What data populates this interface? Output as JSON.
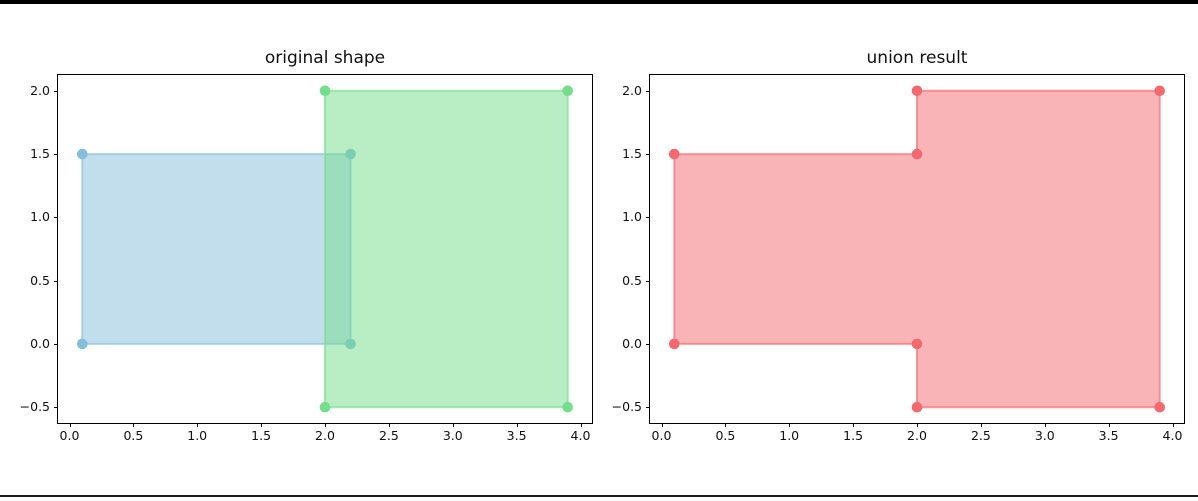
{
  "figure": {
    "background": "#ffffff",
    "top_border_color": "#000000",
    "bottom_border_color": "#1c1c1c"
  },
  "chart_data": [
    {
      "type": "area",
      "title": "original shape",
      "xlabel": "",
      "ylabel": "",
      "xlim": [
        -0.09,
        4.09
      ],
      "ylim": [
        -0.625,
        2.125
      ],
      "xticks": [
        0.0,
        0.5,
        1.0,
        1.5,
        2.0,
        2.5,
        3.0,
        3.5,
        4.0
      ],
      "yticks": [
        -0.5,
        0.0,
        0.5,
        1.0,
        1.5,
        2.0
      ],
      "grid": false,
      "legend": null,
      "shapes": [
        {
          "name": "blue-rectangle",
          "color": "#85BEDB",
          "fill_alpha": 0.5,
          "edge_alpha": 0.65,
          "vertices": [
            [
              0.1,
              0.0
            ],
            [
              2.2,
              0.0
            ],
            [
              2.2,
              1.5
            ],
            [
              0.1,
              1.5
            ]
          ]
        },
        {
          "name": "green-rectangle",
          "color": "#74DE8C",
          "fill_alpha": 0.5,
          "edge_alpha": 0.65,
          "vertices": [
            [
              2.0,
              -0.5
            ],
            [
              3.9,
              -0.5
            ],
            [
              3.9,
              2.0
            ],
            [
              2.0,
              2.0
            ]
          ]
        }
      ]
    },
    {
      "type": "area",
      "title": "union result",
      "xlabel": "",
      "ylabel": "",
      "xlim": [
        -0.09,
        4.09
      ],
      "ylim": [
        -0.625,
        2.125
      ],
      "xticks": [
        0.0,
        0.5,
        1.0,
        1.5,
        2.0,
        2.5,
        3.0,
        3.5,
        4.0
      ],
      "yticks": [
        -0.5,
        0.0,
        0.5,
        1.0,
        1.5,
        2.0
      ],
      "grid": false,
      "legend": null,
      "shapes": [
        {
          "name": "union-polygon",
          "color": "#F4696F",
          "fill_alpha": 0.5,
          "edge_alpha": 0.65,
          "vertices": [
            [
              0.1,
              0.0
            ],
            [
              2.0,
              0.0
            ],
            [
              2.0,
              -0.5
            ],
            [
              3.9,
              -0.5
            ],
            [
              3.9,
              2.0
            ],
            [
              2.0,
              2.0
            ],
            [
              2.0,
              1.5
            ],
            [
              0.1,
              1.5
            ]
          ]
        }
      ]
    }
  ],
  "plot_style": {
    "marker_radius": 5.3,
    "edge_width": 2,
    "axes_width": 534,
    "axes_height": 348
  }
}
